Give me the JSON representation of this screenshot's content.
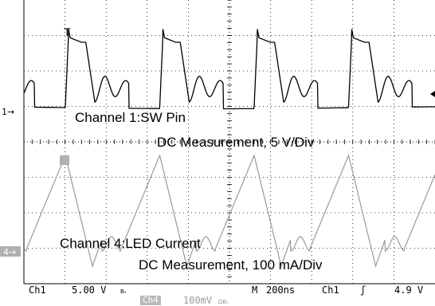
{
  "channel1": {
    "marker": "1→",
    "annotation_line1": "Channel 1:SW Pin",
    "annotation_line2": "DC Measurement, 5 V/Div"
  },
  "channel4": {
    "marker": "4→",
    "annotation_line1": "Channel 4:LED Current",
    "annotation_line2": "DC Measurement, 100 mA/Div"
  },
  "trigger_marker": "T",
  "status_bar": {
    "ch1_label": "Ch1",
    "ch1_scale": "5.00 V",
    "ch1_coupling": "Bᵥ",
    "timebase_label": "M",
    "timebase": "200ns",
    "trigger_source": "Ch1",
    "trigger_slope": "ʃ",
    "trigger_level": "4.9 V",
    "ch4_label": "Ch4",
    "ch4_scale": "100mV",
    "ch4_coupling": "ΩBᵥ"
  },
  "colors": {
    "ch1_trace": "#000000",
    "ch4_trace": "#9a9a9a",
    "grid": "#000000"
  }
}
